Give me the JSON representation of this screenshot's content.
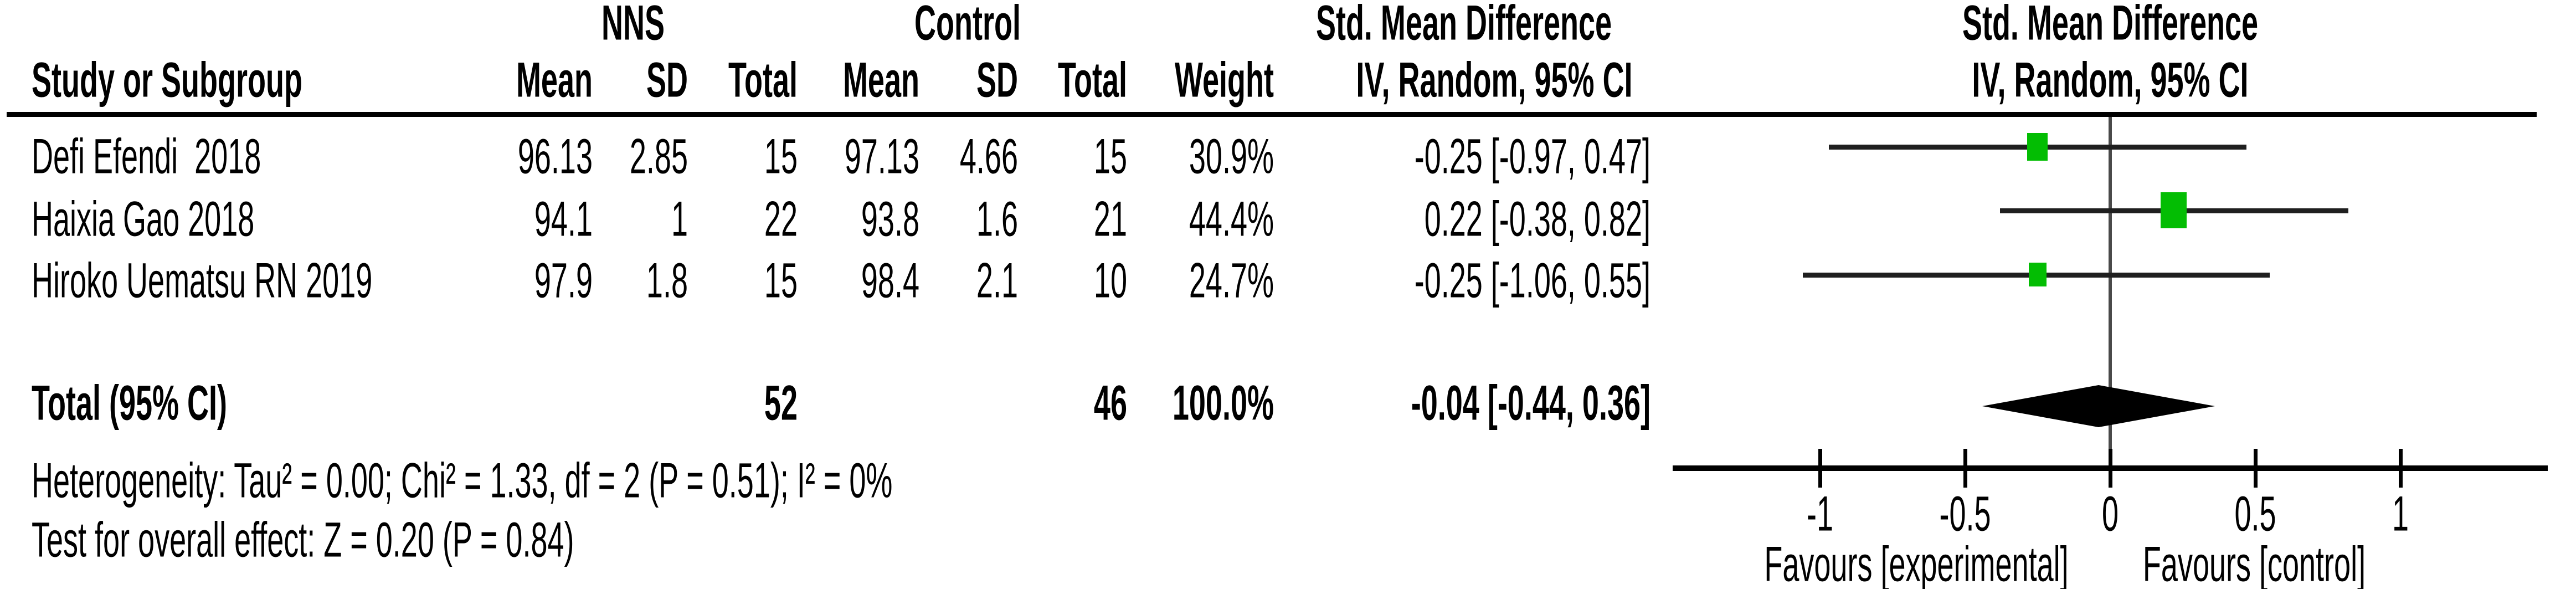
{
  "figure": {
    "group1_title": "NNS",
    "group2_title": "Control",
    "effect_col_title": "Std. Mean Difference",
    "effect_col_subtitle": "IV, Random, 95% CI",
    "plot_title": "Std. Mean Difference",
    "plot_subtitle": "IV, Random, 95% CI",
    "headers": {
      "study": "Study or Subgroup",
      "mean1": "Mean",
      "sd1": "SD",
      "total1": "Total",
      "mean2": "Mean",
      "sd2": "SD",
      "total2": "Total",
      "weight": "Weight"
    },
    "rows": [
      {
        "study": "Defi Efendi  2018",
        "mean1": "96.13",
        "sd1": "2.85",
        "total1": "15",
        "mean2": "97.13",
        "sd2": "4.66",
        "total2": "15",
        "weight": "30.9%",
        "ci_text": "-0.25 [-0.97, 0.47]"
      },
      {
        "study": "Haixia Gao 2018",
        "mean1": "94.1",
        "sd1": "1",
        "total1": "22",
        "mean2": "93.8",
        "sd2": "1.6",
        "total2": "21",
        "weight": "44.4%",
        "ci_text": "0.22 [-0.38, 0.82]"
      },
      {
        "study": "Hiroko Uematsu RN 2019",
        "mean1": "97.9",
        "sd1": "1.8",
        "total1": "15",
        "mean2": "98.4",
        "sd2": "2.1",
        "total2": "10",
        "weight": "24.7%",
        "ci_text": "-0.25 [-1.06, 0.55]"
      }
    ],
    "total_row": {
      "label": "Total (95% CI)",
      "total1": "52",
      "total2": "46",
      "weight": "100.0%",
      "ci_text": "-0.04 [-0.44, 0.36]"
    },
    "heterogeneity": "Heterogeneity: Tau² = 0.00; Chi² = 1.33, df = 2 (P = 0.51); I² = 0%",
    "overall_effect": "Test for overall effect: Z = 0.20 (P = 0.84)"
  },
  "plot": {
    "tick_labels": [
      "-1",
      "-0.5",
      "0",
      "0.5",
      "1"
    ],
    "favours_left": "Favours [experimental]",
    "favours_right": "Favours [control]",
    "marker_color": "#03bd03",
    "ci_line_color": "#1f1f1f",
    "zero_line_color": "#4a4a4a",
    "diamond_color": "#000000"
  },
  "chart_data": {
    "type": "forest",
    "title": "Std. Mean Difference",
    "model": "IV, Random, 95% CI",
    "xlim": [
      -1,
      1
    ],
    "x_ticks": [
      -1,
      -0.5,
      0,
      0.5,
      1
    ],
    "studies": [
      {
        "name": "Defi Efendi 2018",
        "nns_mean": 96.13,
        "nns_sd": 2.85,
        "nns_total": 15,
        "control_mean": 97.13,
        "control_sd": 4.66,
        "control_total": 15,
        "weight_pct": 30.9,
        "smd": -0.25,
        "ci_low": -0.97,
        "ci_high": 0.47,
        "marker_h": 50,
        "marker_w": 37
      },
      {
        "name": "Haixia Gao 2018",
        "nns_mean": 94.1,
        "nns_sd": 1,
        "nns_total": 22,
        "control_mean": 93.8,
        "control_sd": 1.6,
        "control_total": 21,
        "weight_pct": 44.4,
        "smd": 0.22,
        "ci_low": -0.38,
        "ci_high": 0.82,
        "marker_h": 65,
        "marker_w": 47
      },
      {
        "name": "Hiroko Uematsu RN 2019",
        "nns_mean": 97.9,
        "nns_sd": 1.8,
        "nns_total": 15,
        "control_mean": 98.4,
        "control_sd": 2.1,
        "control_total": 10,
        "weight_pct": 24.7,
        "smd": -0.25,
        "ci_low": -1.06,
        "ci_high": 0.55,
        "marker_h": 43,
        "marker_w": 32
      }
    ],
    "total": {
      "nns_total": 52,
      "control_total": 46,
      "weight_pct": 100.0,
      "smd": -0.04,
      "ci_low": -0.44,
      "ci_high": 0.36
    },
    "heterogeneity": {
      "tau2": 0.0,
      "chi2": 1.33,
      "df": 2,
      "p": 0.51,
      "i2_pct": 0
    },
    "overall_test": {
      "z": 0.2,
      "p": 0.84
    },
    "favours": [
      "Favours [experimental]",
      "Favours [control]"
    ],
    "legend_position": "none",
    "grid": false
  }
}
